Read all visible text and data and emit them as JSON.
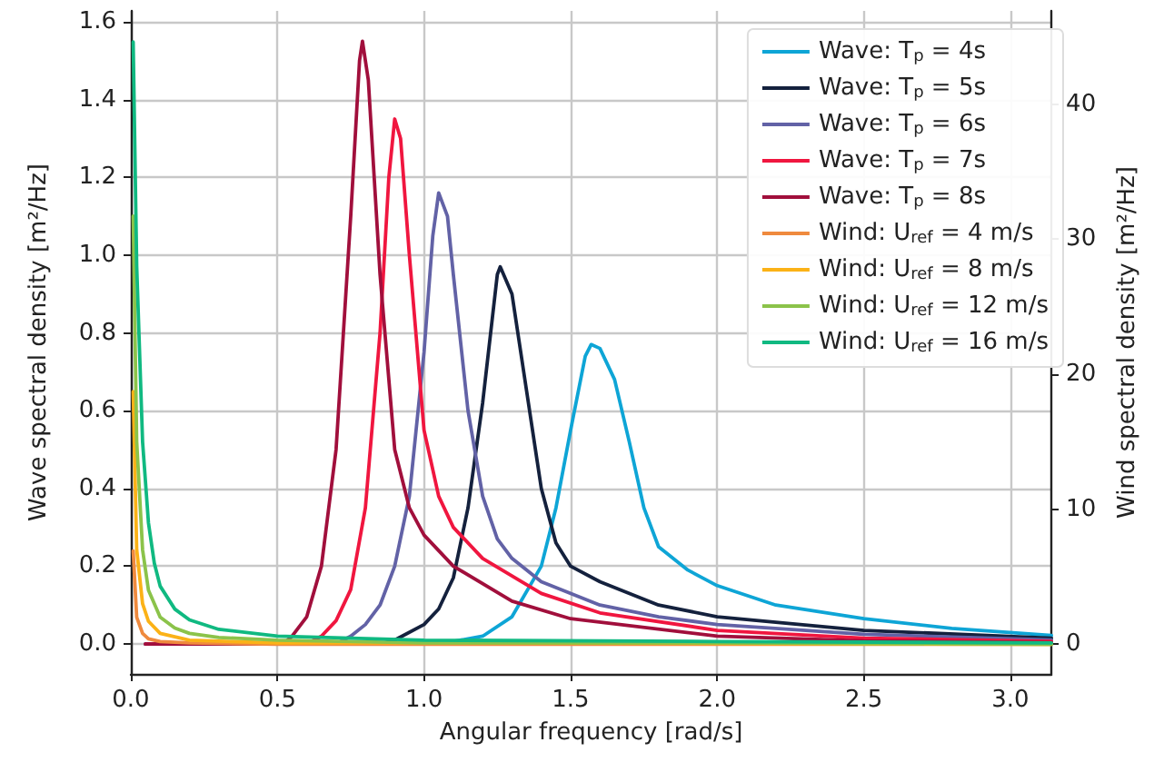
{
  "chart_data": {
    "type": "line",
    "xlabel": "Angular frequency [rad/s]",
    "ylabel": "Wave spectral density [m²/Hz]",
    "y2label": "Wind spectral density [m²/Hz]",
    "xlim": [
      0,
      3.14
    ],
    "xticks": [
      {
        "value": 0,
        "label": "0.0"
      },
      0.5,
      {
        "value": 1,
        "label": "1.0"
      },
      1.5,
      {
        "value": 2,
        "label": "2.0"
      },
      2.5,
      {
        "value": 3,
        "label": "3.0"
      }
    ],
    "ylim": [
      -0.077,
      1.628
    ],
    "yticks": [
      {
        "value": 0,
        "label": "0.0"
      },
      0.2,
      0.4,
      0.6,
      0.8,
      {
        "value": 1,
        "label": "1.0"
      },
      1.2,
      1.4,
      1.6
    ],
    "y2lim": [
      -2.2,
      46.9
    ],
    "y2ticks": [
      0,
      10,
      20,
      30,
      40
    ],
    "grid": true,
    "legend": "top right",
    "marker": "none",
    "line_style": "solid",
    "series": [
      {
        "name": "Wave: T$_{p}$ = 4s",
        "color": "#0ea5d6",
        "x": [
          0.05,
          1.05,
          1.2,
          1.3,
          1.4,
          1.45,
          1.5,
          1.55,
          1.57,
          1.6,
          1.65,
          1.7,
          1.75,
          1.8,
          1.9,
          2.0,
          2.2,
          2.5,
          2.8,
          3.14
        ],
        "values": [
          0,
          0,
          0.02,
          0.07,
          0.2,
          0.35,
          0.55,
          0.74,
          0.77,
          0.76,
          0.68,
          0.52,
          0.35,
          0.25,
          0.19,
          0.15,
          0.1,
          0.065,
          0.04,
          0.022
        ]
      },
      {
        "name": "Wave: T$_{p}$ = 5s",
        "color": "#14213d",
        "x": [
          0.05,
          0.85,
          0.9,
          1.0,
          1.05,
          1.1,
          1.15,
          1.2,
          1.25,
          1.26,
          1.3,
          1.35,
          1.4,
          1.45,
          1.5,
          1.6,
          1.8,
          2.0,
          2.5,
          3.14
        ],
        "values": [
          0,
          0,
          0.01,
          0.05,
          0.09,
          0.17,
          0.35,
          0.62,
          0.95,
          0.97,
          0.9,
          0.65,
          0.4,
          0.26,
          0.2,
          0.16,
          0.1,
          0.07,
          0.035,
          0.015
        ]
      },
      {
        "name": "Wave: T$_{p}$ = 6s",
        "color": "#6262a6",
        "x": [
          0.05,
          0.7,
          0.75,
          0.8,
          0.85,
          0.9,
          0.95,
          1.0,
          1.03,
          1.05,
          1.08,
          1.1,
          1.15,
          1.2,
          1.25,
          1.3,
          1.4,
          1.6,
          1.8,
          2.0,
          2.5,
          3.14
        ],
        "values": [
          0,
          0,
          0.02,
          0.05,
          0.1,
          0.2,
          0.38,
          0.75,
          1.05,
          1.16,
          1.1,
          0.95,
          0.6,
          0.38,
          0.27,
          0.22,
          0.16,
          0.1,
          0.07,
          0.05,
          0.025,
          0.01
        ]
      },
      {
        "name": "Wave: T$_{p}$ = 7s",
        "color": "#f0163f",
        "x": [
          0.05,
          0.6,
          0.65,
          0.7,
          0.75,
          0.8,
          0.85,
          0.88,
          0.9,
          0.92,
          0.95,
          1.0,
          1.05,
          1.1,
          1.2,
          1.4,
          1.6,
          2.0,
          2.5,
          3.14
        ],
        "values": [
          0,
          0,
          0.02,
          0.06,
          0.14,
          0.35,
          0.8,
          1.2,
          1.35,
          1.3,
          1.0,
          0.55,
          0.38,
          0.3,
          0.22,
          0.13,
          0.08,
          0.035,
          0.015,
          0.007
        ]
      },
      {
        "name": "Wave: T$_{p}$ = 8s",
        "color": "#a10f3c",
        "x": [
          0.05,
          0.52,
          0.55,
          0.6,
          0.65,
          0.7,
          0.75,
          0.78,
          0.79,
          0.81,
          0.85,
          0.9,
          0.95,
          1.0,
          1.1,
          1.3,
          1.5,
          2.0,
          2.5,
          3.14
        ],
        "values": [
          0,
          0,
          0.02,
          0.07,
          0.2,
          0.5,
          1.1,
          1.5,
          1.55,
          1.45,
          0.95,
          0.5,
          0.35,
          0.28,
          0.2,
          0.11,
          0.065,
          0.02,
          0.008,
          0.004
        ]
      },
      {
        "name": "Wind: U$_{ref}$ = 4 m/s",
        "color": "#ef8a3e",
        "axis": "y2",
        "x": [
          0.008,
          0.02,
          0.04,
          0.06,
          0.1,
          0.2,
          0.5,
          3.14
        ],
        "values": [
          6.9,
          2,
          0.8,
          0.4,
          0.2,
          0.1,
          0,
          0
        ]
      },
      {
        "name": "Wind: U$_{ref}$ = 8 m/s",
        "color": "#fbb217",
        "axis": "y2",
        "x": [
          0.008,
          0.02,
          0.04,
          0.06,
          0.1,
          0.2,
          0.5,
          1.0,
          3.14
        ],
        "values": [
          18.7,
          7,
          3,
          1.7,
          0.8,
          0.3,
          0.1,
          0.1,
          0
        ]
      },
      {
        "name": "Wind: U$_{ref}$ = 12 m/s",
        "color": "#8bc34a",
        "axis": "y2",
        "x": [
          0.008,
          0.02,
          0.04,
          0.06,
          0.1,
          0.15,
          0.2,
          0.3,
          0.5,
          1.0,
          2.0,
          3.14
        ],
        "values": [
          31.7,
          15,
          7,
          4,
          2,
          1.2,
          0.8,
          0.5,
          0.3,
          0.1,
          0.1,
          0
        ]
      },
      {
        "name": "Wind: U$_{ref}$ = 16 m/s",
        "color": "#10b981",
        "axis": "y2",
        "x": [
          0.008,
          0.02,
          0.04,
          0.06,
          0.08,
          0.1,
          0.15,
          0.2,
          0.3,
          0.5,
          1.0,
          2.0,
          3.14
        ],
        "values": [
          44.6,
          28,
          15,
          9,
          6,
          4.3,
          2.6,
          1.8,
          1.1,
          0.6,
          0.3,
          0.2,
          0.1
        ]
      }
    ]
  }
}
